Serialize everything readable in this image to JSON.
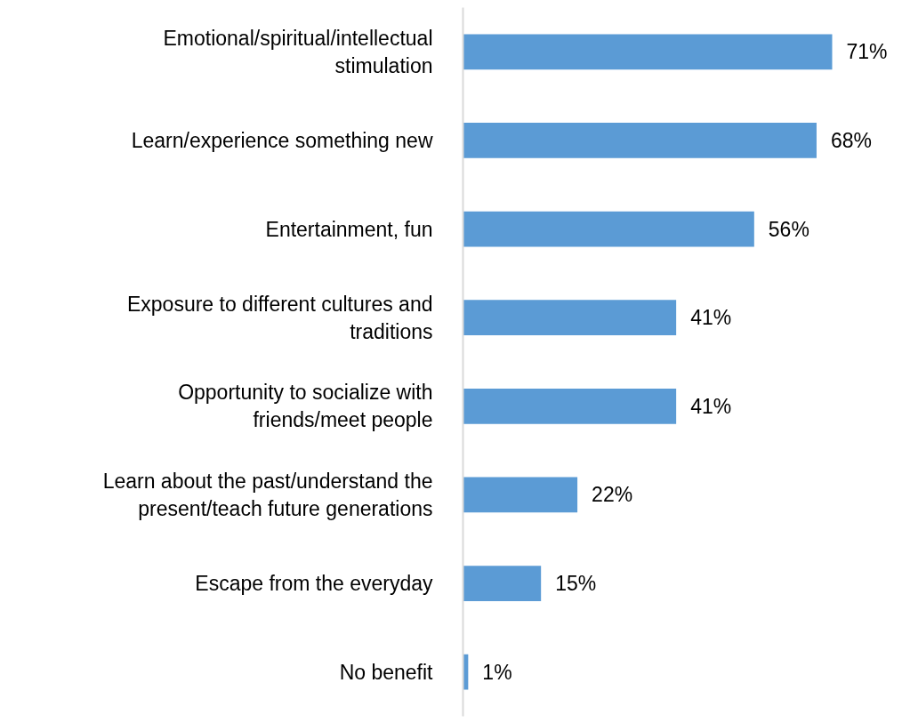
{
  "chart_data": {
    "type": "bar",
    "orientation": "horizontal",
    "categories": [
      "Emotional/spiritual/intellectual stimulation",
      "Learn/experience something new",
      "Entertainment, fun",
      "Exposure to different cultures and traditions",
      "Opportunity to socialize with friends/meet people",
      "Learn about the past/understand the present/teach future generations",
      "Escape from the everyday",
      "No benefit"
    ],
    "values": [
      71,
      68,
      56,
      41,
      41,
      22,
      15,
      1
    ],
    "value_labels": [
      "71%",
      "68%",
      "56%",
      "41%",
      "41%",
      "22%",
      "15%",
      "1%"
    ],
    "color": "#5b9bd5",
    "grid": false,
    "tick_labels": "y"
  }
}
